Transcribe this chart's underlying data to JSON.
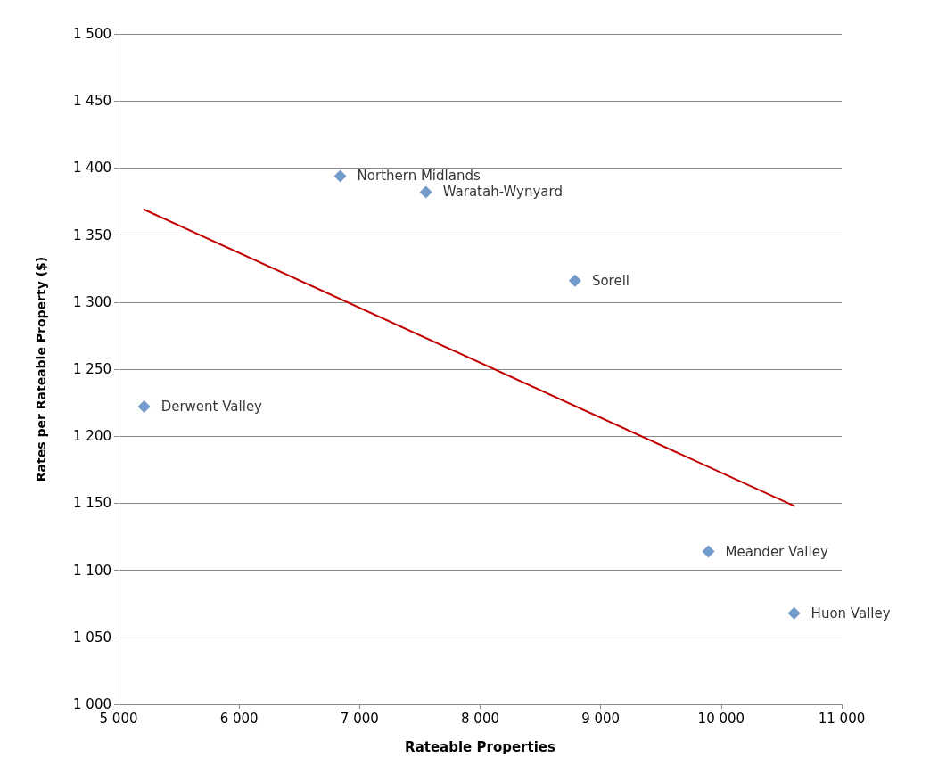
{
  "chart_data": {
    "type": "scatter",
    "xlabel": "Rateable Properties",
    "ylabel": "Rates per Rateable Property ($)",
    "xlim": [
      5000,
      11000
    ],
    "ylim": [
      1000,
      1500
    ],
    "xticks": [
      {
        "value": 5000,
        "label": "5 000"
      },
      {
        "value": 6000,
        "label": "6 000"
      },
      {
        "value": 7000,
        "label": "7 000"
      },
      {
        "value": 8000,
        "label": "8 000"
      },
      {
        "value": 9000,
        "label": "9 000"
      },
      {
        "value": 10000,
        "label": "10 000"
      },
      {
        "value": 11000,
        "label": "11 000"
      }
    ],
    "yticks": [
      {
        "value": 1000,
        "label": "1 000"
      },
      {
        "value": 1050,
        "label": "1 050"
      },
      {
        "value": 1100,
        "label": "1 100"
      },
      {
        "value": 1150,
        "label": "1 150"
      },
      {
        "value": 1200,
        "label": "1 200"
      },
      {
        "value": 1250,
        "label": "1 250"
      },
      {
        "value": 1300,
        "label": "1 300"
      },
      {
        "value": 1350,
        "label": "1 350"
      },
      {
        "value": 1400,
        "label": "1 400"
      },
      {
        "value": 1450,
        "label": "1 450"
      },
      {
        "value": 1500,
        "label": "1 500"
      }
    ],
    "grid": "y",
    "series": [
      {
        "color": "#4f81bd",
        "marker": "diamond",
        "x": [
          5212,
          6839,
          7550,
          8787,
          9894,
          10605
        ],
        "values": [
          1222,
          1394,
          1382,
          1316,
          1114,
          1068
        ],
        "value_labels": [
          "Derwent Valley",
          "Northern Midlands",
          "Waratah-Wynyard",
          "Sorell",
          "Meander Valley",
          "Huon Valley"
        ]
      },
      {
        "type": "line",
        "color": "#c00000",
        "marker": "none",
        "line_style": "solid",
        "x": [
          5212,
          10605
        ],
        "values": [
          1369,
          1148
        ]
      }
    ]
  }
}
